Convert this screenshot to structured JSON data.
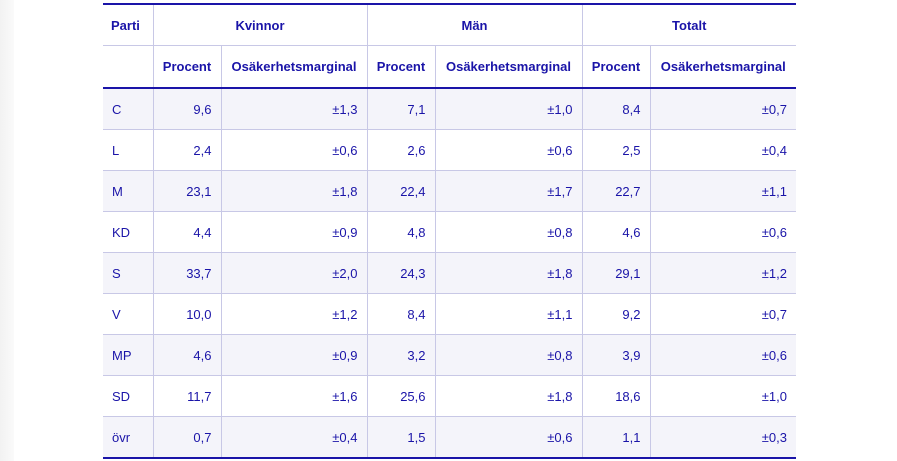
{
  "table": {
    "headers": {
      "parti": "Parti",
      "groups": [
        "Kvinnor",
        "Män",
        "Totalt"
      ],
      "procent": "Procent",
      "marginal": "Osäkerhetsmarginal"
    },
    "rows": [
      {
        "parti": "C",
        "k_p": "9,6",
        "k_m": "±1,3",
        "m_p": "7,1",
        "m_m": "±1,0",
        "t_p": "8,4",
        "t_m": "±0,7"
      },
      {
        "parti": "L",
        "k_p": "2,4",
        "k_m": "±0,6",
        "m_p": "2,6",
        "m_m": "±0,6",
        "t_p": "2,5",
        "t_m": "±0,4"
      },
      {
        "parti": "M",
        "k_p": "23,1",
        "k_m": "±1,8",
        "m_p": "22,4",
        "m_m": "±1,7",
        "t_p": "22,7",
        "t_m": "±1,1"
      },
      {
        "parti": "KD",
        "k_p": "4,4",
        "k_m": "±0,9",
        "m_p": "4,8",
        "m_m": "±0,8",
        "t_p": "4,6",
        "t_m": "±0,6"
      },
      {
        "parti": "S",
        "k_p": "33,7",
        "k_m": "±2,0",
        "m_p": "24,3",
        "m_m": "±1,8",
        "t_p": "29,1",
        "t_m": "±1,2"
      },
      {
        "parti": "V",
        "k_p": "10,0",
        "k_m": "±1,2",
        "m_p": "8,4",
        "m_m": "±1,1",
        "t_p": "9,2",
        "t_m": "±0,7"
      },
      {
        "parti": "MP",
        "k_p": "4,6",
        "k_m": "±0,9",
        "m_p": "3,2",
        "m_m": "±0,8",
        "t_p": "3,9",
        "t_m": "±0,6"
      },
      {
        "parti": "SD",
        "k_p": "11,7",
        "k_m": "±1,6",
        "m_p": "25,6",
        "m_m": "±1,8",
        "t_p": "18,6",
        "t_m": "±1,0"
      },
      {
        "parti": "övr",
        "k_p": "0,7",
        "k_m": "±0,4",
        "m_p": "1,5",
        "m_m": "±0,6",
        "t_p": "1,1",
        "t_m": "±0,3"
      }
    ]
  },
  "colors": {
    "text": "#1a14a8",
    "rule": "#1a14a8",
    "grid": "#c8c8e6",
    "stripe": "#f4f4fa"
  }
}
